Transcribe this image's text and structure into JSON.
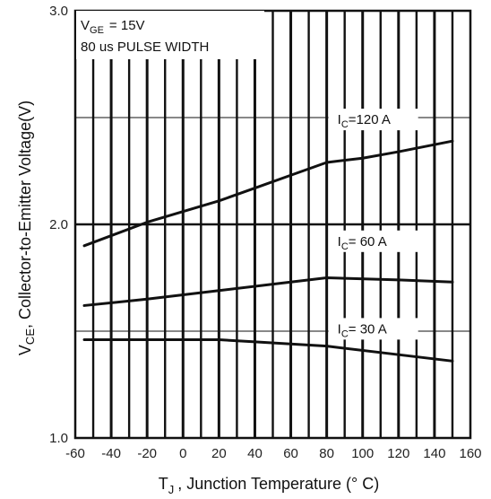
{
  "chart_data": {
    "type": "line",
    "xlabel": "T",
    "xlabel_sub": "J",
    "xlabel_rest": ", Junction Temperature (° C)",
    "ylabel": "V",
    "ylabel_sub": "CE",
    "ylabel_rest": ", Collector-to-Emitter Voltage(V)",
    "xlim": [
      -60,
      160
    ],
    "ylim": [
      1.0,
      3.0
    ],
    "x_ticks": [
      -60,
      -40,
      -20,
      0,
      20,
      40,
      60,
      80,
      100,
      120,
      140,
      160
    ],
    "y_ticks": [
      "1.0",
      "2.0",
      "3.0"
    ],
    "grid": true,
    "conditions": {
      "vge_label": "V",
      "vge_sub": "GE",
      "vge_value": "= 15V",
      "pulse": "80 us PULSE WIDTH"
    },
    "series": [
      {
        "name": "I",
        "name_sub": "C",
        "name_value": "=120 A",
        "x": [
          -55,
          -20,
          20,
          40,
          60,
          80,
          100,
          120,
          150
        ],
        "y": [
          1.9,
          2.01,
          2.11,
          2.17,
          2.23,
          2.29,
          2.31,
          2.34,
          2.39
        ]
      },
      {
        "name": "I",
        "name_sub": "C",
        "name_value": "= 60 A",
        "x": [
          -55,
          -20,
          20,
          60,
          80,
          120,
          150
        ],
        "y": [
          1.62,
          1.65,
          1.69,
          1.73,
          1.75,
          1.74,
          1.73
        ]
      },
      {
        "name": "I",
        "name_sub": "C",
        "name_value": "= 30 A",
        "x": [
          -55,
          0,
          20,
          40,
          80,
          120,
          150
        ],
        "y": [
          1.46,
          1.46,
          1.46,
          1.45,
          1.43,
          1.39,
          1.36
        ]
      }
    ]
  }
}
